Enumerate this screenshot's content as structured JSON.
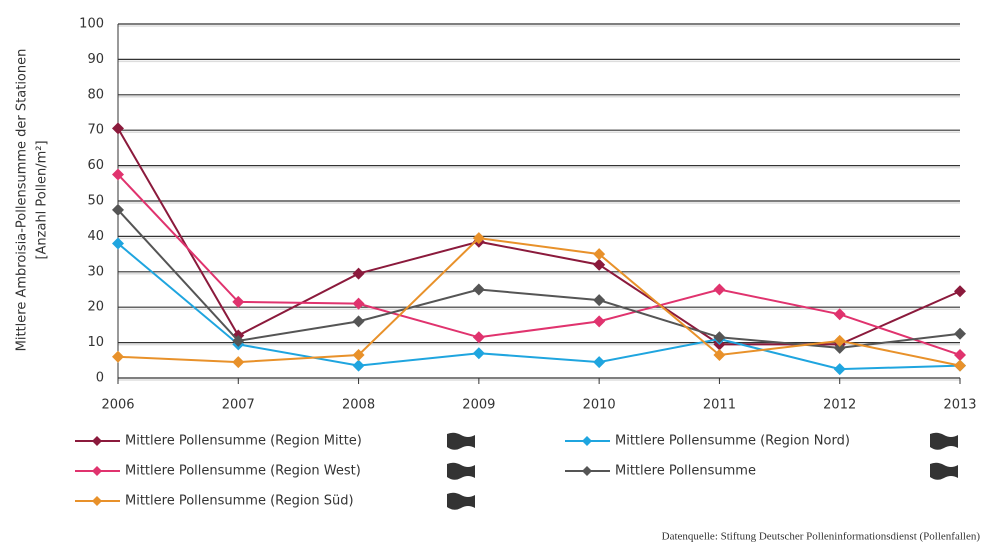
{
  "chart_data": {
    "type": "line",
    "y_label": [
      "Mittlere Ambroisia-Pollensumme der Stationen",
      "[Anzahl Pollen/m²]"
    ],
    "source": "Datenquelle: Stiftung Deutscher Polleninformationsdienst (Pollenfallen)",
    "x": [
      2006,
      2007,
      2008,
      2009,
      2010,
      2011,
      2012,
      2013
    ],
    "xlim": [
      2006,
      2013
    ],
    "xticks": [
      2006,
      2007,
      2008,
      2009,
      2010,
      2011,
      2012,
      2013
    ],
    "ylim": [
      0,
      100
    ],
    "yticks": [
      0,
      10,
      20,
      30,
      40,
      50,
      60,
      70,
      80,
      90,
      100
    ],
    "grid": true,
    "series": [
      {
        "name": "Mittlere Pollensumme (Region Mitte)",
        "color": "#8b1a3c",
        "values": [
          70.5,
          12,
          29.5,
          38.5,
          32,
          9.5,
          9.5,
          24.5
        ]
      },
      {
        "name": "Mittlere Pollensumme (Region Nord)",
        "color": "#1fa5df",
        "values": [
          38,
          9.5,
          3.5,
          7,
          4.5,
          11,
          2.5,
          3.5
        ]
      },
      {
        "name": "Mittlere Pollensumme (Region West)",
        "color": "#e0336e",
        "values": [
          57.5,
          21.5,
          21,
          11.5,
          16,
          25,
          18,
          6.5
        ]
      },
      {
        "name": "Mittlere Pollensumme",
        "color": "#555555",
        "values": [
          47.5,
          10.5,
          16,
          25,
          22,
          11.5,
          8.5,
          12.5
        ]
      },
      {
        "name": "Mittlere Pollensumme (Region Süd)",
        "color": "#e8912a",
        "values": [
          6,
          4.5,
          6.5,
          39.5,
          35,
          6.5,
          10.5,
          3.5
        ]
      }
    ]
  }
}
